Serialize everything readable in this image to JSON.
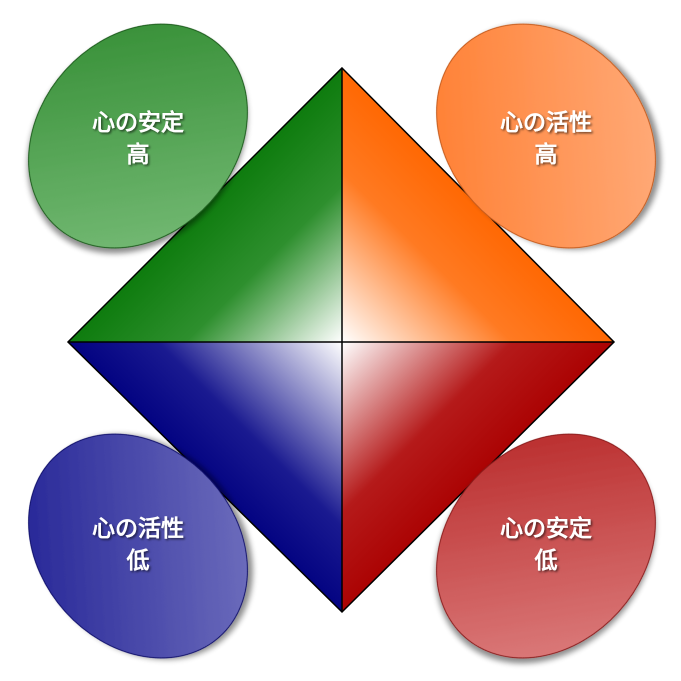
{
  "diagram": {
    "labels": {
      "top_left": {
        "line1": "心の安定",
        "line2": "高"
      },
      "top_right": {
        "line1": "心の活性",
        "line2": "高"
      },
      "bottom_left": {
        "line1": "心の活性",
        "line2": "低"
      },
      "bottom_right": {
        "line1": "心の安定",
        "line2": "低"
      }
    },
    "colors": {
      "green": "#0b7a0b",
      "green_light": "#6fb86f",
      "orange": "#ff6600",
      "orange_light": "#ffa26a",
      "navy": "#000080",
      "navy_light": "#6a6ab8",
      "red": "#aa0000",
      "red_light": "#d87070"
    }
  }
}
